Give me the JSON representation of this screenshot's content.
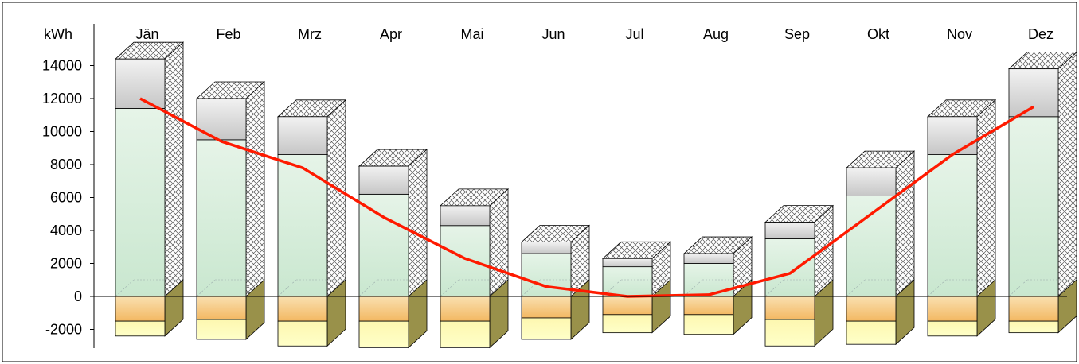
{
  "chart_data": {
    "type": "bar",
    "title": "",
    "xlabel": "",
    "ylabel": "kWh",
    "ylim": [
      -3000,
      16000
    ],
    "yticks": [
      14000,
      12000,
      10000,
      8000,
      6000,
      4000,
      2000,
      0,
      -2000
    ],
    "categories": [
      "Jän",
      "Feb",
      "Mrz",
      "Apr",
      "Mai",
      "Jun",
      "Jul",
      "Aug",
      "Sep",
      "Okt",
      "Nov",
      "Dez"
    ],
    "series": [
      {
        "values": [
          11400,
          9500,
          8600,
          6200,
          4300,
          2600,
          1800,
          2000,
          3500,
          6100,
          8600,
          10900
        ]
      },
      {
        "values": [
          3000,
          2500,
          2300,
          1700,
          1200,
          700,
          500,
          600,
          1000,
          1700,
          2300,
          2900
        ]
      },
      {
        "values": [
          -1500,
          -1400,
          -1500,
          -1500,
          -1500,
          -1300,
          -1100,
          -1100,
          -1400,
          -1500,
          -1500,
          -1500
        ]
      },
      {
        "values": [
          -900,
          -1200,
          -1500,
          -1600,
          -1600,
          -1300,
          -1100,
          -1200,
          -1600,
          -1400,
          -900,
          -700
        ]
      },
      {
        "values": [
          12000,
          9400,
          7800,
          4800,
          2300,
          600,
          0,
          100,
          1400,
          5000,
          8600,
          11500
        ]
      }
    ],
    "colors": {
      "green_fill": "#d4ecd8",
      "grey_fill": "#d0d0d0",
      "orange_fill": "#f6c77e",
      "yellow_fill": "#fdfaa6",
      "olive_side": "#99914a",
      "line": "#ff1a00"
    },
    "grid": false,
    "legend": "none"
  }
}
